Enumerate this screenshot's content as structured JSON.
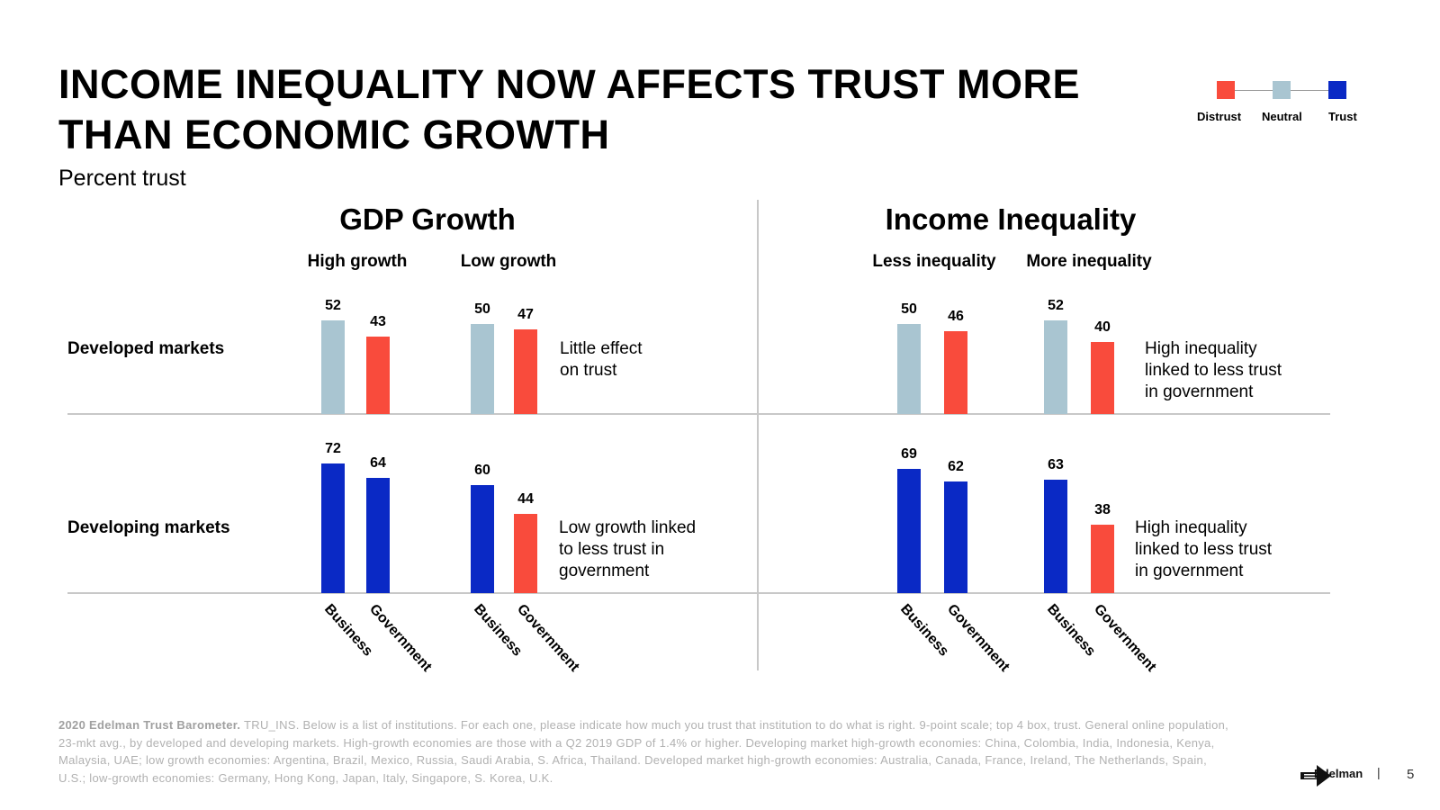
{
  "title": "INCOME INEQUALITY NOW AFFECTS TRUST MORE THAN ECONOMIC GROWTH",
  "subtitle": "Percent trust",
  "legend": {
    "items": [
      {
        "label": "Distrust",
        "color": "#f94b3c"
      },
      {
        "label": "Neutral",
        "color": "#a9c5d1"
      },
      {
        "label": "Trust",
        "color": "#0a29c5"
      }
    ]
  },
  "colors": {
    "distrust": "#f94b3c",
    "neutral": "#a9c5d1",
    "trust": "#0a29c5"
  },
  "chart_data": {
    "type": "bar",
    "title": "Percent trust",
    "institutions": [
      "Business",
      "Government"
    ],
    "rows": [
      "Developed markets",
      "Developing markets"
    ],
    "panels": [
      {
        "title": "GDP Growth",
        "groups": [
          "High growth",
          "Low growth"
        ],
        "values": [
          [
            [
              52,
              43
            ],
            [
              50,
              47
            ]
          ],
          [
            [
              72,
              64
            ],
            [
              60,
              44
            ]
          ]
        ],
        "categories": [
          [
            [
              "neutral",
              "distrust"
            ],
            [
              "neutral",
              "distrust"
            ]
          ],
          [
            [
              "trust",
              "trust"
            ],
            [
              "trust",
              "distrust"
            ]
          ]
        ],
        "notes": [
          "Little effect on trust",
          "Low growth linked to less trust in government"
        ]
      },
      {
        "title": "Income Inequality",
        "groups": [
          "Less inequality",
          "More inequality"
        ],
        "values": [
          [
            [
              50,
              46
            ],
            [
              52,
              40
            ]
          ],
          [
            [
              69,
              62
            ],
            [
              63,
              38
            ]
          ]
        ],
        "categories": [
          [
            [
              "neutral",
              "distrust"
            ],
            [
              "neutral",
              "distrust"
            ]
          ],
          [
            [
              "trust",
              "trust"
            ],
            [
              "trust",
              "distrust"
            ]
          ]
        ],
        "notes": [
          "High inequality linked to less trust in government",
          "High inequality linked to less trust in government"
        ]
      }
    ]
  },
  "source": {
    "bold": "2020 Edelman Trust Barometer.",
    "text": " TRU_INS. Below is a list of institutions. For each one, please indicate how much you trust that institution to do what is right. 9-point scale; top 4 box, trust. General online population, 23-mkt avg., by developed and developing markets. High-growth economies are those with a Q2 2019 GDP of 1.4% or higher. Developing market high-growth economies: China, Colombia, India, Indonesia, Kenya, Malaysia, UAE; low growth economies: Argentina, Brazil, Mexico, Russia, Saudi Arabia, S. Africa, Thailand. Developed market high-growth economies: Australia, Canada, France, Ireland, The Netherlands, Spain, U.S.; low-growth economies: Germany, Hong Kong, Japan, Italy, Singapore, S. Korea, U.K."
  },
  "footer": {
    "brand": "Edelman",
    "separator": "|",
    "page": "5"
  }
}
